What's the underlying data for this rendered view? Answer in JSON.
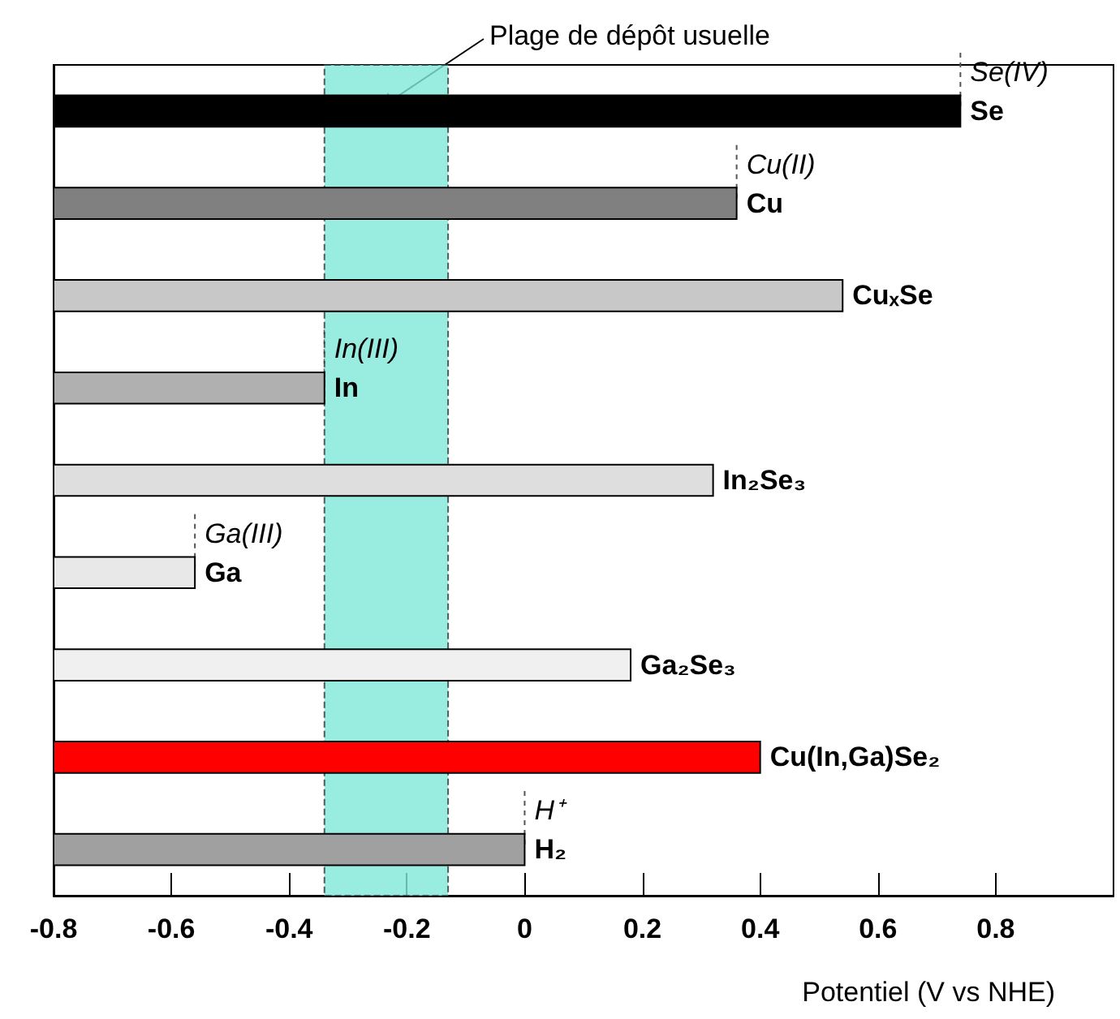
{
  "chart_data": {
    "type": "bar",
    "orientation": "horizontal",
    "xlabel": "Potentiel (V vs NHE)",
    "categories": [
      "Se",
      "Cu",
      "CuₓSe",
      "In",
      "In₂Se₃",
      "Ga",
      "Ga₂Se₃",
      "Cu(In,Ga)Se₂",
      "H₂"
    ],
    "base": [
      -0.8,
      -0.8,
      -0.8,
      -0.8,
      -0.8,
      -0.8,
      -0.8,
      -0.8,
      -0.8
    ],
    "values": [
      1.54,
      1.16,
      1.34,
      0.46,
      1.12,
      0.24,
      0.98,
      1.2,
      0.8
    ],
    "colors": [
      "#000000",
      "#808080",
      "#c8c8c8",
      "#b0b0b0",
      "#dedede",
      "#e8e8e8",
      "#f0f0f0",
      "#ff0000",
      "#a0a0a0"
    ],
    "xlim": [
      -0.8,
      1.0
    ],
    "xticks": [
      -0.8,
      -0.6,
      -0.4,
      -0.2,
      0,
      0.2,
      0.4,
      0.6,
      0.8
    ],
    "tick_labels": "x",
    "grid": false,
    "bands": [
      {
        "axis": "x",
        "from": -0.34,
        "to": -0.13,
        "label": "Plage de dépôt usuelle",
        "color": "#7fe8d8"
      }
    ],
    "annotations": [
      {
        "text": "Se(IV)",
        "x": 0.74,
        "y": "Se"
      },
      {
        "text": "Cu(II)",
        "x": 0.36,
        "y": "Cu"
      },
      {
        "text": "In(III)",
        "x": -0.34,
        "y": "In"
      },
      {
        "text": "Ga(III)",
        "x": -0.56,
        "y": "Ga"
      },
      {
        "text": "H⁺",
        "x": 0,
        "y": "H₂"
      }
    ]
  }
}
